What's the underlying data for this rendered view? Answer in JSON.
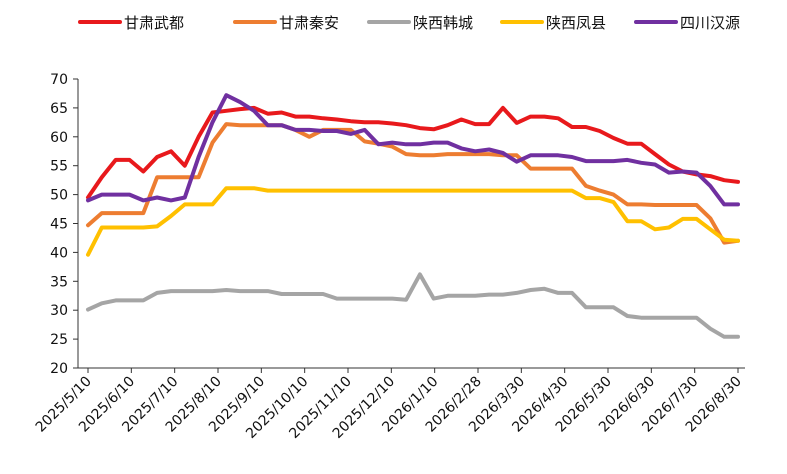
{
  "chart_data": {
    "type": "line",
    "title": "",
    "xlabel": "",
    "ylabel": "",
    "ylim": [
      20,
      70
    ],
    "yticks": [
      20,
      25,
      30,
      35,
      40,
      45,
      50,
      55,
      60,
      65,
      70
    ],
    "x_ticks": [
      "2025/5/10",
      "2025/6/10",
      "2025/7/10",
      "2025/8/10",
      "2025/9/10",
      "2025/10/10",
      "2025/11/10",
      "2025/12/10",
      "2026/1/10",
      "2026/2/28",
      "2026/3/30",
      "2026/4/30",
      "2026/5/30",
      "2026/6/30",
      "2026/7/30",
      "2026/8/30"
    ],
    "grid": false,
    "legend_position": "top",
    "series": [
      {
        "name": "甘肃武都",
        "color": "#E8191C",
        "values": [
          49.5,
          53,
          56,
          56,
          54,
          56.5,
          57.5,
          55,
          60,
          64.2,
          64.5,
          64.8,
          65,
          64,
          64.2,
          63.5,
          63.5,
          63.2,
          63,
          62.7,
          62.5,
          62.5,
          62.3,
          62,
          61.5,
          61.3,
          62,
          63,
          62.2,
          62.2,
          65,
          62.4,
          63.5,
          63.5,
          63.2,
          61.7,
          61.7,
          61,
          59.8,
          58.8,
          58.8,
          57,
          55.2,
          54,
          53.5,
          53.2,
          52.5,
          52.2
        ]
      },
      {
        "name": "甘肃秦安",
        "color": "#ED7D31",
        "values": [
          44.7,
          46.8,
          46.8,
          46.8,
          46.8,
          53,
          53,
          53,
          53,
          59,
          62.2,
          62,
          62,
          62,
          62,
          61.2,
          60,
          61.2,
          61.2,
          61.2,
          59.2,
          58.8,
          58.3,
          57,
          56.8,
          56.8,
          57,
          57,
          57,
          57,
          56.8,
          56.8,
          54.5,
          54.5,
          54.5,
          54.5,
          51.5,
          50.7,
          50,
          48.3,
          48.3,
          48.2,
          48.2,
          48.2,
          48.2,
          45.9,
          41.7,
          42
        ]
      },
      {
        "name": "陕西韩城",
        "color": "#A5A5A5",
        "values": [
          30.1,
          31.2,
          31.7,
          31.7,
          31.7,
          33,
          33.3,
          33.3,
          33.3,
          33.3,
          33.5,
          33.3,
          33.3,
          33.3,
          32.8,
          32.8,
          32.8,
          32.8,
          32,
          32,
          32,
          32,
          32,
          31.8,
          36.2,
          32,
          32.5,
          32.5,
          32.5,
          32.7,
          32.7,
          33,
          33.5,
          33.7,
          33,
          33,
          30.5,
          30.5,
          30.5,
          29,
          28.7,
          28.7,
          28.7,
          28.7,
          28.7,
          26.8,
          25.4,
          25.4
        ]
      },
      {
        "name": "陕西凤县",
        "color": "#FFC000",
        "values": [
          39.6,
          44.3,
          44.3,
          44.3,
          44.3,
          44.5,
          46.3,
          48.3,
          48.3,
          48.3,
          51.1,
          51.1,
          51.1,
          50.7,
          50.7,
          50.7,
          50.7,
          50.7,
          50.7,
          50.7,
          50.7,
          50.7,
          50.7,
          50.7,
          50.7,
          50.7,
          50.7,
          50.7,
          50.7,
          50.7,
          50.7,
          50.7,
          50.7,
          50.7,
          50.7,
          50.7,
          49.4,
          49.4,
          48.7,
          45.4,
          45.4,
          44,
          44.3,
          45.8,
          45.8,
          44,
          42.2,
          42
        ]
      },
      {
        "name": "四川汉源",
        "color": "#7030A0",
        "values": [
          49,
          50,
          50,
          50,
          49,
          49.5,
          49,
          49.5,
          56.5,
          62.5,
          67.2,
          66,
          64.5,
          62,
          62,
          61.2,
          61.2,
          61,
          61,
          60.5,
          61.2,
          58.7,
          59,
          58.7,
          58.7,
          59,
          59,
          58,
          57.5,
          57.8,
          57.2,
          55.7,
          56.8,
          56.8,
          56.8,
          56.5,
          55.8,
          55.8,
          55.8,
          56,
          55.5,
          55.2,
          53.8,
          54,
          53.8,
          51.5,
          48.3,
          48.3
        ]
      }
    ]
  }
}
